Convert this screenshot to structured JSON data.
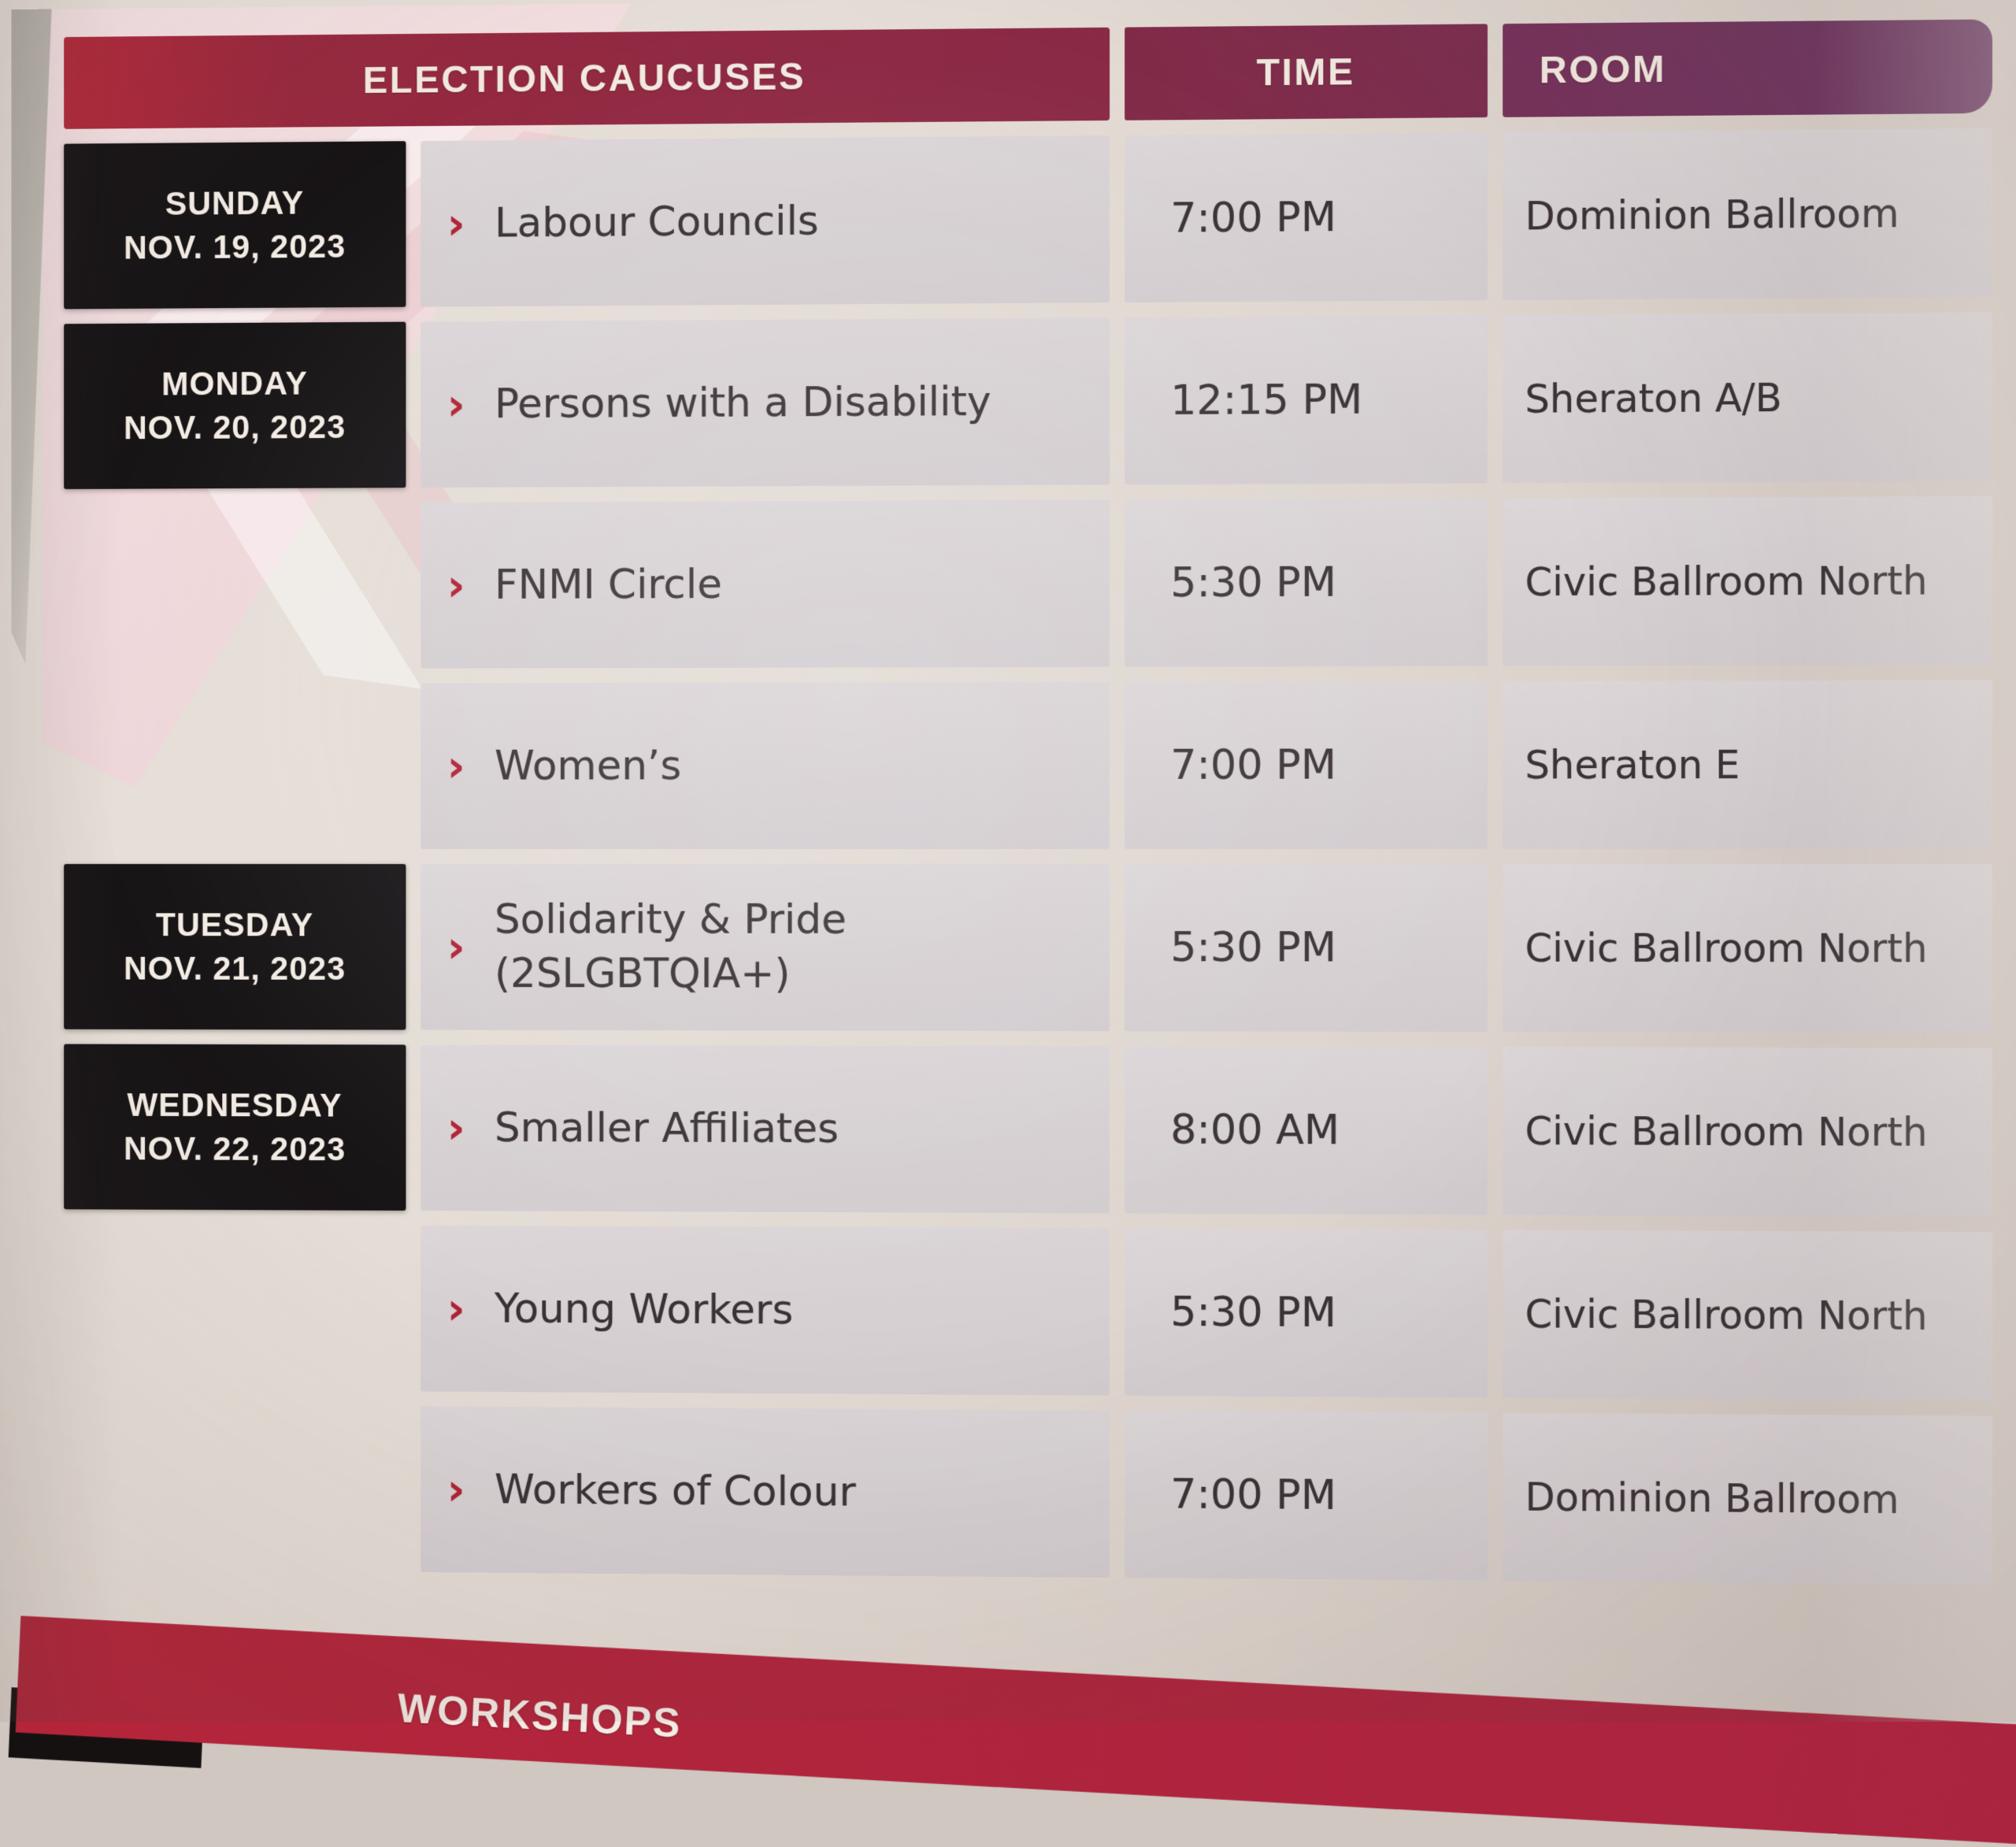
{
  "table": {
    "header": {
      "caucuses": "ELECTION CAUCUSES",
      "time": "TIME",
      "room": "ROOM"
    },
    "bullet": "›",
    "rows": [
      {
        "day": "SUNDAY",
        "date": "NOV. 19, 2023",
        "caucus": "Labour Councils",
        "time": "7:00 PM",
        "room": "Dominion Ballroom"
      },
      {
        "day": "MONDAY",
        "date": "NOV. 20, 2023",
        "caucus": "Persons with a Disability",
        "time": "12:15 PM",
        "room": "Sheraton A/B"
      },
      {
        "day": "",
        "date": "",
        "caucus": "FNMI Circle",
        "time": "5:30 PM",
        "room": "Civic Ballroom North"
      },
      {
        "day": "",
        "date": "",
        "caucus": "Women’s",
        "time": "7:00 PM",
        "room": "Sheraton E"
      },
      {
        "day": "TUESDAY",
        "date": "NOV. 21, 2023",
        "caucus": "Solidarity & Pride",
        "caucus2": "(2SLGBTQIA+)",
        "time": "5:30 PM",
        "room": "Civic Ballroom North"
      },
      {
        "day": "WEDNESDAY",
        "date": "NOV. 22, 2023",
        "caucus": "Smaller Affiliates",
        "time": "8:00 AM",
        "room": "Civic Ballroom North"
      },
      {
        "day": "",
        "date": "",
        "caucus": "Young Workers",
        "time": "5:30 PM",
        "room": "Civic Ballroom North"
      },
      {
        "day": "",
        "date": "",
        "caucus": "Workers of Colour",
        "time": "7:00 PM",
        "room": "Dominion Ballroom"
      }
    ],
    "next_section": "WORKSHOPS"
  },
  "colors": {
    "header_red": "#97293f",
    "header_purple": "#6c3a64",
    "banner_red": "#b2253a",
    "date_box_black": "#181517",
    "cell_gray": "#d7d1d3",
    "bullet_red": "#b22133",
    "text_dark": "#3a3236",
    "header_text": "#f2e9e1"
  }
}
